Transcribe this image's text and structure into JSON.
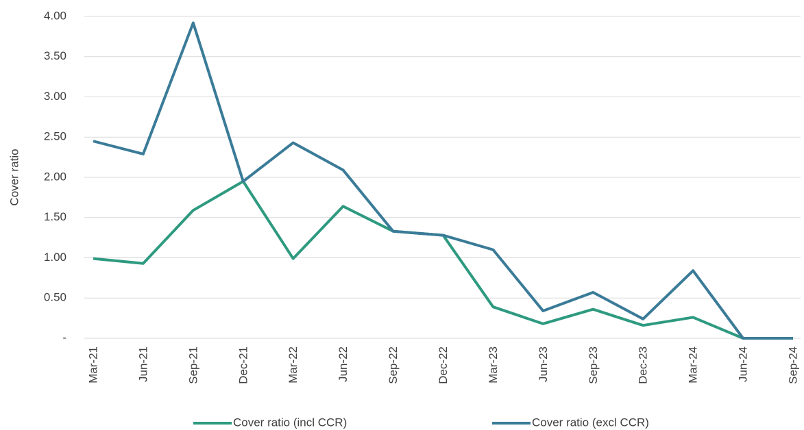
{
  "chart_data": {
    "type": "line",
    "y_label": "Cover ratio",
    "categories": [
      "Mar-21",
      "Jun-21",
      "Sep-21",
      "Dec-21",
      "Mar-22",
      "Jun-22",
      "Sep-22",
      "Dec-22",
      "Mar-23",
      "Jun-23",
      "Sep-23",
      "Dec-23",
      "Mar-24",
      "Jun-24",
      "Sep-24"
    ],
    "series": [
      {
        "name": "Cover ratio (incl CCR)",
        "color": "#2e9a80",
        "values": [
          0.99,
          0.93,
          1.59,
          1.95,
          0.99,
          1.64,
          1.33,
          1.28,
          0.39,
          0.18,
          0.36,
          0.16,
          0.26,
          0,
          0
        ]
      },
      {
        "name": "Cover ratio (excl CCR)",
        "color": "#3a7b98",
        "values": [
          2.45,
          2.29,
          3.92,
          1.95,
          2.43,
          2.09,
          1.33,
          1.28,
          1.1,
          0.34,
          0.57,
          0.24,
          0.84,
          0,
          0
        ]
      }
    ],
    "ylim": [
      0,
      4
    ],
    "yticks": [
      {
        "value": 0,
        "label": "-"
      },
      {
        "value": 0.5,
        "label": "0.50"
      },
      {
        "value": 1,
        "label": "1.00"
      },
      {
        "value": 1.5,
        "label": "1.50"
      },
      {
        "value": 2,
        "label": "2.00"
      },
      {
        "value": 2.5,
        "label": "2.50"
      },
      {
        "value": 3,
        "label": "3.00"
      },
      {
        "value": 3.5,
        "label": "3.50"
      },
      {
        "value": 4,
        "label": "4.00"
      }
    ],
    "grid": true,
    "legend": "bottom"
  }
}
